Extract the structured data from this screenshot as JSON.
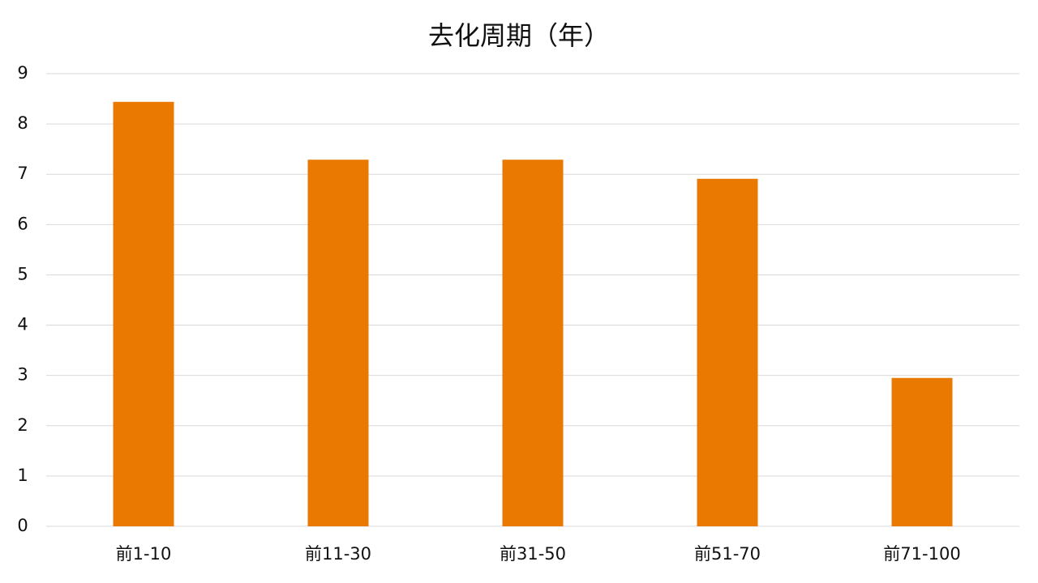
{
  "chart_data": {
    "type": "bar",
    "title": "去化周期（年）",
    "categories": [
      "前1-10",
      "前11-30",
      "前31-50",
      "前51-70",
      "前71-100"
    ],
    "values": [
      8.44,
      7.29,
      7.29,
      6.91,
      2.95
    ],
    "color": "#e97900",
    "ylim": [
      0,
      9
    ],
    "yticks": [
      0,
      1,
      2,
      3,
      4,
      5,
      6,
      7,
      8,
      9
    ],
    "grid": true
  }
}
